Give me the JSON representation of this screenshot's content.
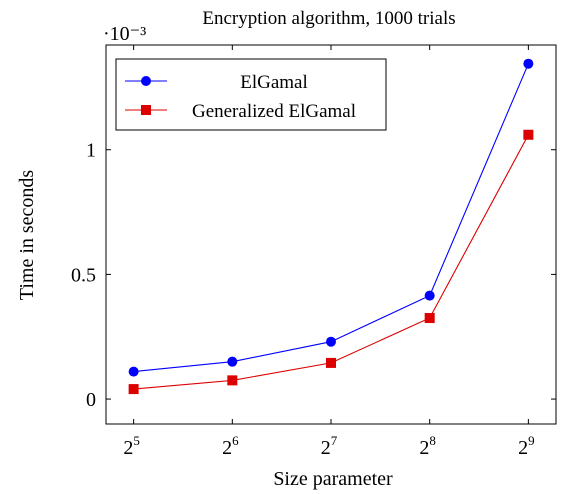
{
  "chart_data": {
    "type": "line",
    "title": "Encryption algorithm, 1000 trials",
    "xlabel": "Size parameter",
    "ylabel": "Time in seconds",
    "y_scale_note": "·10⁻³",
    "x": [
      5,
      6,
      7,
      8,
      9
    ],
    "x_tick_labels": [
      {
        "base": "2",
        "exp": "5"
      },
      {
        "base": "2",
        "exp": "6"
      },
      {
        "base": "2",
        "exp": "7"
      },
      {
        "base": "2",
        "exp": "8"
      },
      {
        "base": "2",
        "exp": "9"
      }
    ],
    "y_ticks": [
      0,
      0.5,
      1
    ],
    "y_tick_labels": [
      "0",
      "0.5",
      "1"
    ],
    "ylim": [
      -0.1,
      1.42
    ],
    "xlim": [
      4.72,
      9.28
    ],
    "grid": false,
    "legend_position": "top-left",
    "series": [
      {
        "name": "ElGamal",
        "color": "#0000ff",
        "marker": "circle",
        "values": [
          0.11,
          0.15,
          0.23,
          0.415,
          1.345
        ]
      },
      {
        "name": "Generalized ElGamal",
        "color": "#dd0000",
        "marker": "square",
        "values": [
          0.04,
          0.075,
          0.145,
          0.325,
          1.06
        ]
      }
    ]
  }
}
